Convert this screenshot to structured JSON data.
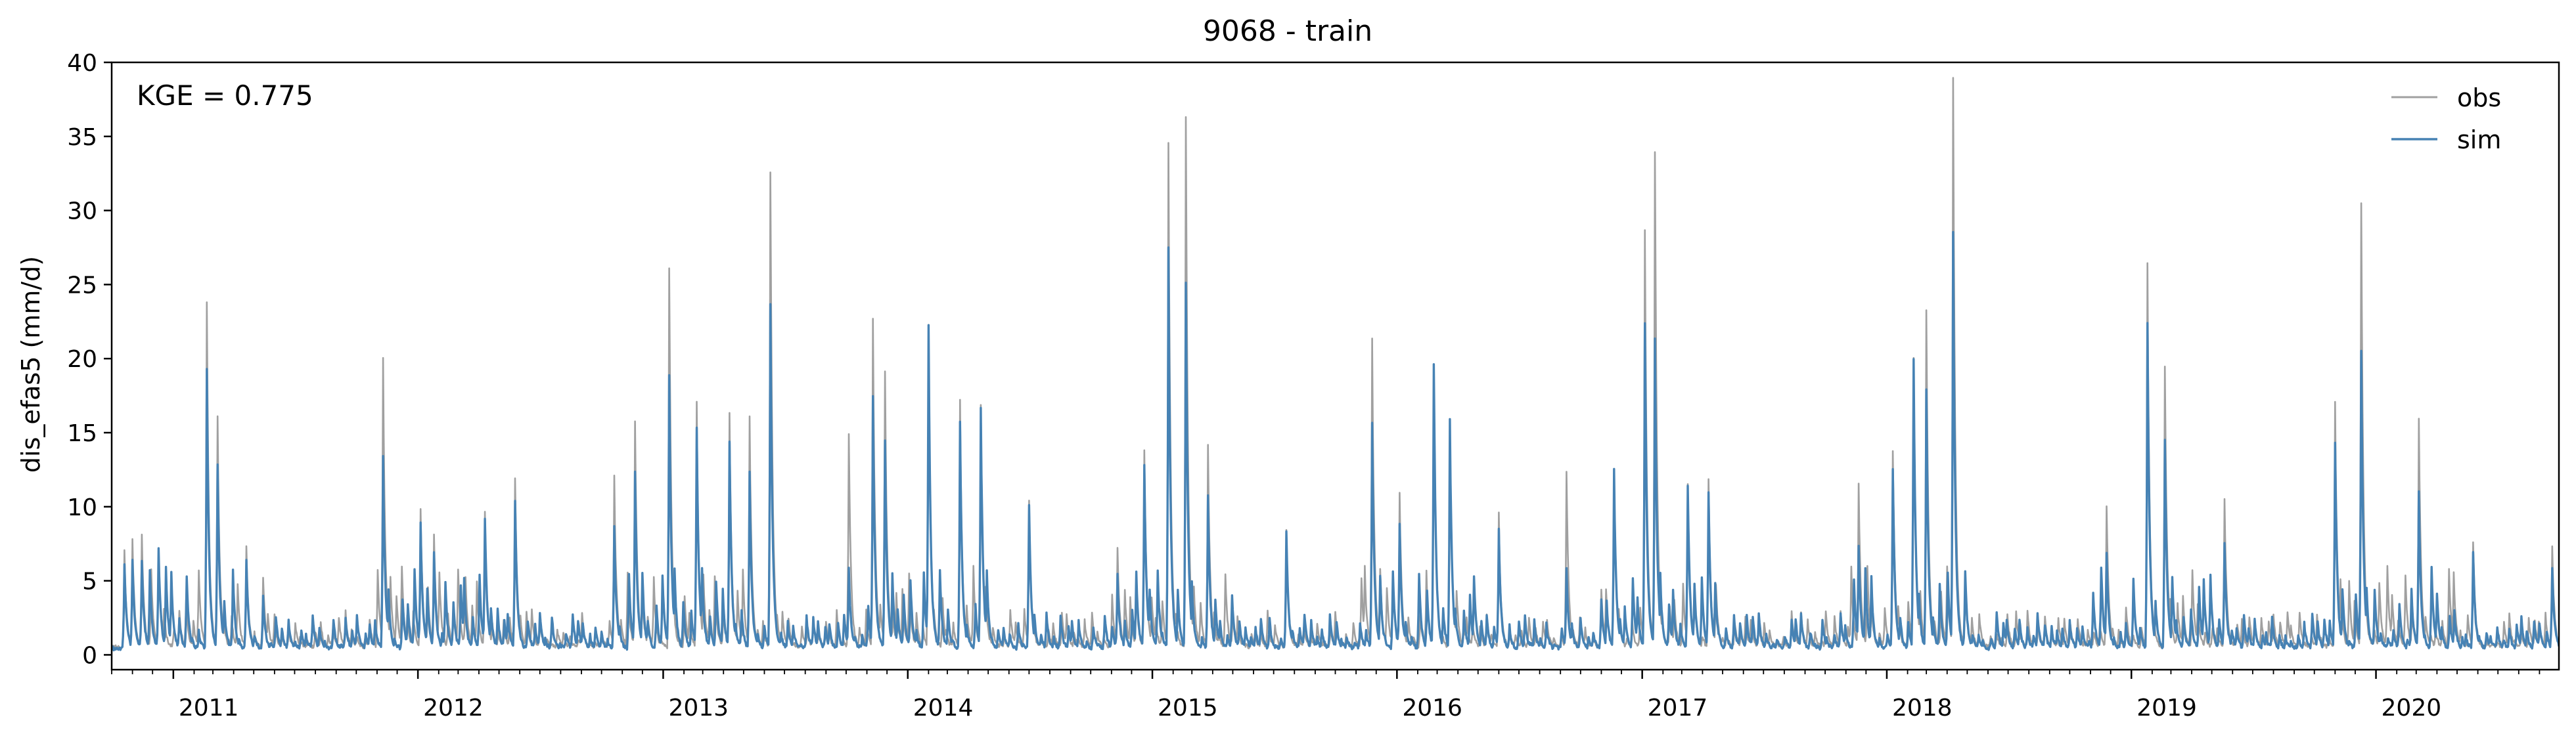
{
  "chart_data": {
    "type": "line",
    "title": "9068 - train",
    "ylabel": "dis_efas5 (mm/d)",
    "xlabel": "",
    "xlim": [
      "2010-10-01",
      "2020-09-30"
    ],
    "ylim": [
      -1,
      40
    ],
    "yticks": [
      0,
      5,
      10,
      15,
      20,
      25,
      30,
      35,
      40
    ],
    "xtick_labels": [
      "2011",
      "2012",
      "2013",
      "2014",
      "2015",
      "2016",
      "2017",
      "2018",
      "2019",
      "2020"
    ],
    "annotation": "KGE = 0.775",
    "legend_position": "top-right",
    "grid": false,
    "series": [
      {
        "name": "obs",
        "color": "#a0a0a0",
        "baseline": 0.4,
        "peaks": [
          [
            "2010-10-20",
            6.5
          ],
          [
            "2010-11-01",
            7.3
          ],
          [
            "2010-11-15",
            7.5
          ],
          [
            "2010-12-10",
            6.6
          ],
          [
            "2011-01-10",
            2.5
          ],
          [
            "2011-02-20",
            23.2
          ],
          [
            "2011-03-08",
            15.6
          ],
          [
            "2011-04-20",
            6.8
          ],
          [
            "2011-05-15",
            4.8
          ],
          [
            "2011-09-15",
            2.5
          ],
          [
            "2011-11-10",
            19.5
          ],
          [
            "2012-01-05",
            9.3
          ],
          [
            "2012-01-25",
            7.5
          ],
          [
            "2012-04-10",
            9.2
          ],
          [
            "2012-05-25",
            11.5
          ],
          [
            "2012-10-20",
            11.5
          ],
          [
            "2012-11-20",
            15.3
          ],
          [
            "2013-01-10",
            25.5
          ],
          [
            "2013-02-20",
            16.5
          ],
          [
            "2013-04-10",
            15.9
          ],
          [
            "2013-05-10",
            15.5
          ],
          [
            "2013-06-10",
            32.1
          ],
          [
            "2013-10-05",
            14.5
          ],
          [
            "2013-11-10",
            22.1
          ],
          [
            "2013-11-28",
            18.6
          ],
          [
            "2014-02-01",
            21.8
          ],
          [
            "2014-03-20",
            16.6
          ],
          [
            "2014-04-20",
            16.4
          ],
          [
            "2014-07-01",
            9.8
          ],
          [
            "2014-11-10",
            6.6
          ],
          [
            "2014-12-20",
            13.3
          ],
          [
            "2015-01-25",
            34.0
          ],
          [
            "2015-02-20",
            35.9
          ],
          [
            "2015-03-25",
            13.7
          ],
          [
            "2015-07-20",
            7.9
          ],
          [
            "2015-11-25",
            20.8
          ],
          [
            "2016-01-05",
            10.3
          ],
          [
            "2016-02-25",
            18.7
          ],
          [
            "2016-03-20",
            15.4
          ],
          [
            "2016-06-01",
            9.0
          ],
          [
            "2016-09-10",
            11.9
          ],
          [
            "2016-11-20",
            12.0
          ],
          [
            "2017-01-05",
            28.1
          ],
          [
            "2017-01-20",
            33.5
          ],
          [
            "2017-03-10",
            11.1
          ],
          [
            "2017-04-10",
            11.3
          ],
          [
            "2017-11-20",
            11.0
          ],
          [
            "2018-01-10",
            13.2
          ],
          [
            "2018-02-10",
            19.5
          ],
          [
            "2018-03-01",
            22.8
          ],
          [
            "2018-04-10",
            38.4
          ],
          [
            "2018-11-25",
            9.6
          ],
          [
            "2019-01-25",
            26.0
          ],
          [
            "2019-02-20",
            19.0
          ],
          [
            "2019-05-20",
            9.9
          ],
          [
            "2019-11-01",
            16.6
          ],
          [
            "2019-12-10",
            30.0
          ],
          [
            "2020-03-05",
            15.3
          ],
          [
            "2020-05-25",
            7.0
          ],
          [
            "2020-09-20",
            6.8
          ]
        ]
      },
      {
        "name": "sim",
        "color": "#4682b4",
        "baseline": 0.3,
        "peaks": [
          [
            "2010-10-20",
            5.8
          ],
          [
            "2010-11-01",
            6.0
          ],
          [
            "2010-11-15",
            6.0
          ],
          [
            "2010-12-10",
            6.8
          ],
          [
            "2011-01-10",
            2.0
          ],
          [
            "2011-02-20",
            18.8
          ],
          [
            "2011-03-08",
            12.5
          ],
          [
            "2011-04-20",
            6.0
          ],
          [
            "2011-05-15",
            3.5
          ],
          [
            "2011-09-15",
            2.0
          ],
          [
            "2011-11-10",
            13.1
          ],
          [
            "2012-01-05",
            8.5
          ],
          [
            "2012-01-25",
            6.5
          ],
          [
            "2012-04-10",
            8.8
          ],
          [
            "2012-05-25",
            10.0
          ],
          [
            "2012-10-20",
            8.3
          ],
          [
            "2012-11-20",
            12.0
          ],
          [
            "2013-01-10",
            18.5
          ],
          [
            "2013-02-20",
            15.0
          ],
          [
            "2013-04-10",
            14.0
          ],
          [
            "2013-05-10",
            12.0
          ],
          [
            "2013-06-10",
            23.3
          ],
          [
            "2013-10-05",
            5.5
          ],
          [
            "2013-11-10",
            17.0
          ],
          [
            "2013-11-28",
            14.0
          ],
          [
            "2014-02-01",
            21.8
          ],
          [
            "2014-03-20",
            15.2
          ],
          [
            "2014-04-20",
            16.2
          ],
          [
            "2014-07-01",
            9.8
          ],
          [
            "2014-11-10",
            5.0
          ],
          [
            "2014-12-20",
            12.5
          ],
          [
            "2015-01-25",
            27.0
          ],
          [
            "2015-02-20",
            24.7
          ],
          [
            "2015-03-25",
            10.3
          ],
          [
            "2015-07-20",
            7.9
          ],
          [
            "2015-11-25",
            15.3
          ],
          [
            "2016-01-05",
            8.3
          ],
          [
            "2016-02-25",
            19.3
          ],
          [
            "2016-03-20",
            15.4
          ],
          [
            "2016-06-01",
            8.0
          ],
          [
            "2016-09-10",
            5.4
          ],
          [
            "2016-11-20",
            12.0
          ],
          [
            "2017-01-05",
            22.0
          ],
          [
            "2017-01-20",
            21.0
          ],
          [
            "2017-03-10",
            11.1
          ],
          [
            "2017-04-10",
            10.5
          ],
          [
            "2017-11-20",
            7.0
          ],
          [
            "2018-01-10",
            12.0
          ],
          [
            "2018-02-10",
            19.5
          ],
          [
            "2018-03-01",
            17.6
          ],
          [
            "2018-04-10",
            28.0
          ],
          [
            "2018-11-25",
            6.5
          ],
          [
            "2019-01-25",
            22.0
          ],
          [
            "2019-02-20",
            14.0
          ],
          [
            "2019-05-20",
            7.0
          ],
          [
            "2019-11-01",
            14.0
          ],
          [
            "2019-12-10",
            20.2
          ],
          [
            "2020-03-05",
            10.5
          ],
          [
            "2020-05-25",
            6.5
          ],
          [
            "2020-09-20",
            5.5
          ]
        ]
      }
    ]
  }
}
